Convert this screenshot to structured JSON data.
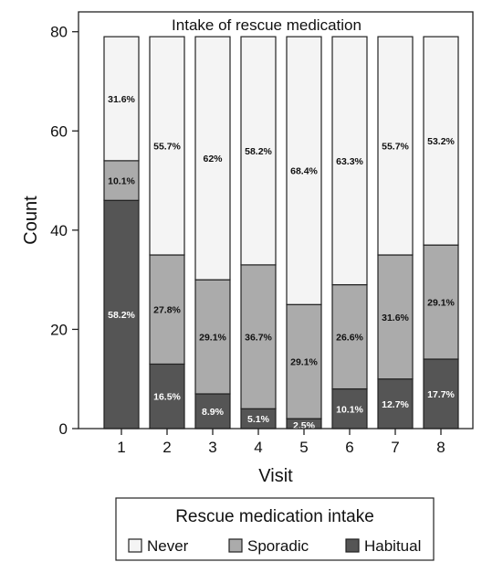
{
  "chart_data": {
    "type": "bar",
    "stacked": true,
    "title": "Intake of rescue medication",
    "xlabel": "Visit",
    "ylabel": "Count",
    "ylim": [
      0,
      84
    ],
    "yticks": [
      0,
      20,
      40,
      60,
      80
    ],
    "categories": [
      "1",
      "2",
      "3",
      "4",
      "5",
      "6",
      "7",
      "8"
    ],
    "series": [
      {
        "name": "Habitual",
        "color": "#555555",
        "values": [
          46,
          13,
          7,
          4,
          2,
          8,
          10,
          14
        ],
        "labels": [
          "58.2%",
          "16.5%",
          "8.9%",
          "5.1%",
          "2.5%",
          "10.1%",
          "12.7%",
          "17.7%"
        ]
      },
      {
        "name": "Sporadic",
        "color": "#ababab",
        "values": [
          8,
          22,
          23,
          29,
          23,
          21,
          25,
          23
        ],
        "labels": [
          "10.1%",
          "27.8%",
          "29.1%",
          "36.7%",
          "29.1%",
          "26.6%",
          "31.6%",
          "29.1%"
        ]
      },
      {
        "name": "Never",
        "color": "#f4f4f4",
        "values": [
          25,
          44,
          49,
          46,
          54,
          50,
          44,
          42
        ],
        "labels": [
          "31.6%",
          "55.7%",
          "62%",
          "58.2%",
          "68.4%",
          "63.3%",
          "55.7%",
          "53.2%"
        ]
      }
    ],
    "grid": false,
    "legend": {
      "placement": "bottom",
      "title": "Rescue medication intake",
      "order": [
        "Never",
        "Sporadic",
        "Habitual"
      ]
    }
  }
}
